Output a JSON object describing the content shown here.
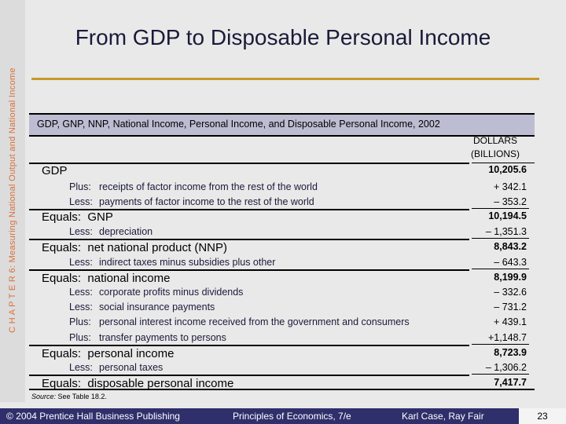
{
  "sidebar": {
    "text": "C H A P T E R 6: Measuring National Output and National Income"
  },
  "slide": {
    "title": "From GDP to Disposable Personal Income"
  },
  "table": {
    "heading": "GDP, GNP, NNP, National Income, Personal Income, and Disposable Personal Income, 2002",
    "column_header_line1": "DOLLARS",
    "column_header_line2": "(BILLIONS)",
    "rows": [
      {
        "kind": "major",
        "prefix": "",
        "label": "GDP",
        "value": "10,205.6"
      },
      {
        "kind": "minor",
        "prefix": "Plus:",
        "label": "receipts of factor income from the rest of the world",
        "value": "+ 342.1"
      },
      {
        "kind": "minor",
        "prefix": "Less:",
        "label": "payments of factor income to the rest of the world",
        "value": "– 353.2"
      },
      {
        "kind": "major",
        "prefix": "Equals:",
        "label": "GNP",
        "value": "10,194.5"
      },
      {
        "kind": "minor",
        "prefix": "Less:",
        "label": "depreciation",
        "value": "– 1,351.3"
      },
      {
        "kind": "major",
        "prefix": "Equals:",
        "label": "net national product (NNP)",
        "value": "8,843.2"
      },
      {
        "kind": "minor",
        "prefix": "Less:",
        "label": "indirect taxes minus subsidies plus other",
        "value": "– 643.3"
      },
      {
        "kind": "major",
        "prefix": "Equals:",
        "label": "national income",
        "value": "8,199.9"
      },
      {
        "kind": "minor",
        "prefix": "Less:",
        "label": "corporate profits minus dividends",
        "value": "– 332.6"
      },
      {
        "kind": "minor",
        "prefix": "Less:",
        "label": "social insurance payments",
        "value": "– 731.2"
      },
      {
        "kind": "minor",
        "prefix": "Plus:",
        "label": "personal interest income received from the government and consumers",
        "value": "+ 439.1"
      },
      {
        "kind": "minor",
        "prefix": "Plus:",
        "label": "transfer payments to persons",
        "value": "+1,148.7"
      },
      {
        "kind": "major",
        "prefix": "Equals:",
        "label": "personal income",
        "value": "8,723.9"
      },
      {
        "kind": "minor",
        "prefix": "Less:",
        "label": "personal taxes",
        "value": "– 1,306.2"
      },
      {
        "kind": "major",
        "prefix": "Equals:",
        "label": "disposable personal income",
        "value": "7,417.7"
      }
    ],
    "source_label": "Source:",
    "source_text": "See Table 18.2."
  },
  "footer": {
    "copyright": "© 2004 Prentice Hall Business Publishing",
    "book": "Principles of Economics, 7/e",
    "authors": "Karl Case, Ray Fair",
    "page_number": "23"
  },
  "colors": {
    "title_rule": "#c89a2a",
    "table_header_bg": "#bcbcd2",
    "footer_bg": "#2f2f6b",
    "sidebar_text": "#d8703a"
  }
}
